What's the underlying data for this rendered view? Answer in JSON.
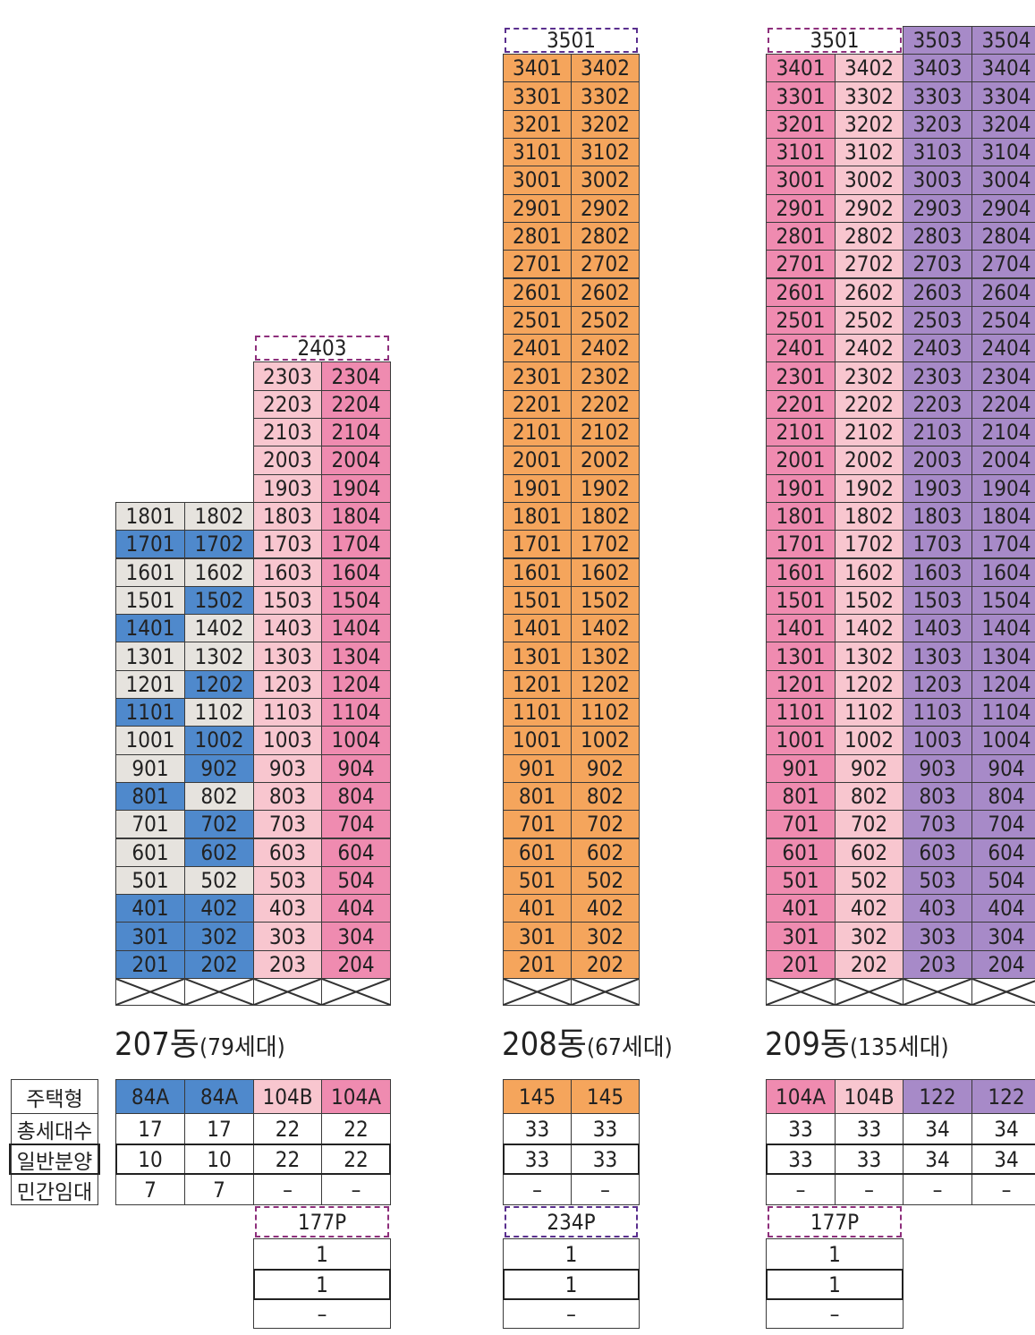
{
  "colors": {
    "blue": "#4f89cc",
    "gray": "#e6e3de",
    "lightpink": "#f8c6cf",
    "pink": "#ef8bb0",
    "orange": "#f5a55c",
    "purple": "#a78ac8",
    "white": "#ffffff"
  },
  "row_labels": [
    "주택형",
    "총세대수",
    "일반분양",
    "민간임대"
  ],
  "buildings": [
    {
      "id": "207",
      "name": "207동",
      "households": "(79세대)",
      "penthouse_label": "2403",
      "type_labels": [
        "84A",
        "84A",
        "104B",
        "104A"
      ],
      "type_colors": [
        "blue",
        "blue",
        "lightpink",
        "pink"
      ],
      "summary": [
        [
          "17",
          "17",
          "22",
          "22"
        ],
        [
          "10",
          "10",
          "22",
          "22"
        ],
        [
          "7",
          "7",
          "–",
          "–"
        ]
      ],
      "penthouse_summary": [
        "177P",
        "1",
        "1",
        "–"
      ],
      "units": [
        [
          "1801",
          "1802",
          "1803",
          "1804"
        ],
        [
          "1701",
          "1702",
          "1703",
          "1704"
        ],
        [
          "1601",
          "1602",
          "1603",
          "1604"
        ],
        [
          "1501",
          "1502",
          "1503",
          "1504"
        ],
        [
          "1401",
          "1402",
          "1403",
          "1404"
        ],
        [
          "1301",
          "1302",
          "1303",
          "1304"
        ],
        [
          "1201",
          "1202",
          "1203",
          "1204"
        ],
        [
          "1101",
          "1102",
          "1103",
          "1104"
        ],
        [
          "1001",
          "1002",
          "1003",
          "1004"
        ],
        [
          "901",
          "902",
          "903",
          "904"
        ],
        [
          "801",
          "802",
          "803",
          "804"
        ],
        [
          "701",
          "702",
          "703",
          "704"
        ],
        [
          "601",
          "602",
          "603",
          "604"
        ],
        [
          "501",
          "502",
          "503",
          "504"
        ],
        [
          "401",
          "402",
          "403",
          "404"
        ],
        [
          "301",
          "302",
          "303",
          "304"
        ],
        [
          "201",
          "202",
          "203",
          "204"
        ]
      ],
      "upper_units": [
        [
          "2303",
          "2304"
        ],
        [
          "2203",
          "2204"
        ],
        [
          "2103",
          "2104"
        ],
        [
          "2003",
          "2004"
        ],
        [
          "1903",
          "1904"
        ]
      ]
    },
    {
      "id": "208",
      "name": "208동",
      "households": "(67세대)",
      "penthouse_label": "3501",
      "type_labels": [
        "145",
        "145"
      ],
      "summary": [
        [
          "33",
          "33"
        ],
        [
          "33",
          "33"
        ],
        [
          "–",
          "–"
        ]
      ],
      "penthouse_summary": [
        "234P",
        "1",
        "1",
        "–"
      ],
      "units": [
        [
          "3401",
          "3402"
        ],
        [
          "3301",
          "3302"
        ],
        [
          "3201",
          "3202"
        ],
        [
          "3101",
          "3102"
        ],
        [
          "3001",
          "3002"
        ],
        [
          "2901",
          "2902"
        ],
        [
          "2801",
          "2802"
        ],
        [
          "2701",
          "2702"
        ],
        [
          "2601",
          "2602"
        ],
        [
          "2501",
          "2502"
        ],
        [
          "2401",
          "2402"
        ],
        [
          "2301",
          "2302"
        ],
        [
          "2201",
          "2202"
        ],
        [
          "2101",
          "2102"
        ],
        [
          "2001",
          "2002"
        ],
        [
          "1901",
          "1902"
        ],
        [
          "1801",
          "1802"
        ],
        [
          "1701",
          "1702"
        ],
        [
          "1601",
          "1602"
        ],
        [
          "1501",
          "1502"
        ],
        [
          "1401",
          "1402"
        ],
        [
          "1301",
          "1302"
        ],
        [
          "1201",
          "1202"
        ],
        [
          "1101",
          "1102"
        ],
        [
          "1001",
          "1002"
        ],
        [
          "901",
          "902"
        ],
        [
          "801",
          "802"
        ],
        [
          "701",
          "702"
        ],
        [
          "601",
          "602"
        ],
        [
          "501",
          "502"
        ],
        [
          "401",
          "402"
        ],
        [
          "301",
          "302"
        ],
        [
          "201",
          "202"
        ]
      ]
    },
    {
      "id": "209",
      "name": "209동",
      "households": "(135세대)",
      "penthouse_label": "3501",
      "top_units": [
        "3503",
        "3504"
      ],
      "type_labels": [
        "104A",
        "104B",
        "122",
        "122"
      ],
      "summary": [
        [
          "33",
          "33",
          "34",
          "34"
        ],
        [
          "33",
          "33",
          "34",
          "34"
        ],
        [
          "–",
          "–",
          "–",
          "–"
        ]
      ],
      "penthouse_summary": [
        "177P",
        "1",
        "1",
        "–"
      ],
      "units": [
        [
          "3401",
          "3402",
          "3403",
          "3404"
        ],
        [
          "3301",
          "3302",
          "3303",
          "3304"
        ],
        [
          "3201",
          "3202",
          "3203",
          "3204"
        ],
        [
          "3101",
          "3102",
          "3103",
          "3104"
        ],
        [
          "3001",
          "3002",
          "3003",
          "3004"
        ],
        [
          "2901",
          "2902",
          "2903",
          "2904"
        ],
        [
          "2801",
          "2802",
          "2803",
          "2804"
        ],
        [
          "2701",
          "2702",
          "2703",
          "2704"
        ],
        [
          "2601",
          "2602",
          "2603",
          "2604"
        ],
        [
          "2501",
          "2502",
          "2503",
          "2504"
        ],
        [
          "2401",
          "2402",
          "2403",
          "2404"
        ],
        [
          "2301",
          "2302",
          "2303",
          "2304"
        ],
        [
          "2201",
          "2202",
          "2203",
          "2204"
        ],
        [
          "2101",
          "2102",
          "2103",
          "2104"
        ],
        [
          "2001",
          "2002",
          "2003",
          "2004"
        ],
        [
          "1901",
          "1902",
          "1903",
          "1904"
        ],
        [
          "1801",
          "1802",
          "1803",
          "1804"
        ],
        [
          "1701",
          "1702",
          "1703",
          "1704"
        ],
        [
          "1601",
          "1602",
          "1603",
          "1604"
        ],
        [
          "1501",
          "1502",
          "1503",
          "1504"
        ],
        [
          "1401",
          "1402",
          "1403",
          "1404"
        ],
        [
          "1301",
          "1302",
          "1303",
          "1304"
        ],
        [
          "1201",
          "1202",
          "1203",
          "1204"
        ],
        [
          "1101",
          "1102",
          "1103",
          "1104"
        ],
        [
          "1001",
          "1002",
          "1003",
          "1004"
        ],
        [
          "901",
          "902",
          "903",
          "904"
        ],
        [
          "801",
          "802",
          "803",
          "804"
        ],
        [
          "701",
          "702",
          "703",
          "704"
        ],
        [
          "601",
          "602",
          "603",
          "604"
        ],
        [
          "501",
          "502",
          "503",
          "504"
        ],
        [
          "401",
          "402",
          "403",
          "404"
        ],
        [
          "301",
          "302",
          "303",
          "304"
        ],
        [
          "201",
          "202",
          "203",
          "204"
        ]
      ]
    }
  ]
}
